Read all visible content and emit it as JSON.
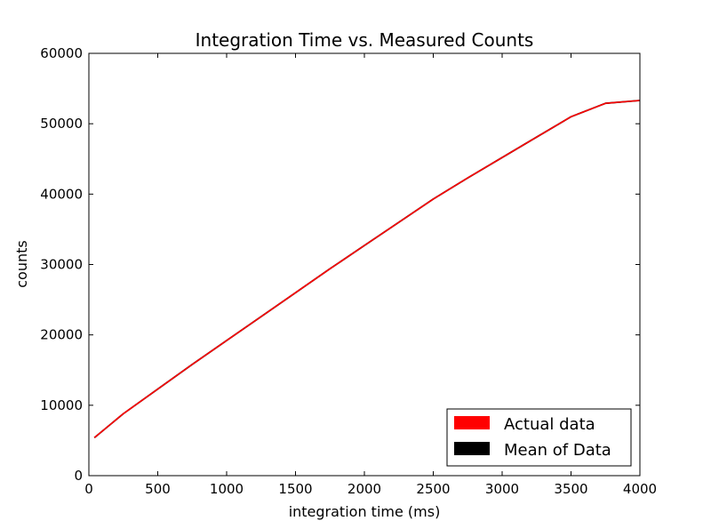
{
  "chart_data": {
    "type": "line",
    "title": "Integration Time vs. Measured Counts",
    "xlabel": "integration time (ms)",
    "ylabel": "counts",
    "xlim": [
      0,
      4000
    ],
    "ylim": [
      0,
      60000
    ],
    "xticks": [
      0,
      500,
      1000,
      1500,
      2000,
      2500,
      3000,
      3500,
      4000
    ],
    "yticks": [
      0,
      10000,
      20000,
      30000,
      40000,
      50000,
      60000
    ],
    "grid": false,
    "legend_position": "bottom-right",
    "series": [
      {
        "name": "Actual data",
        "color": "#ff0000",
        "x": [
          40,
          250,
          500,
          750,
          1000,
          1250,
          1500,
          1750,
          2000,
          2250,
          2500,
          2750,
          3000,
          3250,
          3500,
          3750,
          4000
        ],
        "y": [
          5400,
          8800,
          12300,
          15800,
          19200,
          22600,
          26000,
          29400,
          32700,
          36000,
          39300,
          42300,
          45200,
          48100,
          51000,
          52900,
          53300
        ]
      },
      {
        "name": "Mean of Data",
        "color": "#000000",
        "x": [
          40,
          250,
          500,
          750,
          1000,
          1250,
          1500,
          1750,
          2000,
          2250,
          2500,
          2750,
          3000,
          3250,
          3500,
          3750,
          4000
        ],
        "y": [
          5400,
          8800,
          12300,
          15800,
          19200,
          22600,
          26000,
          29400,
          32700,
          36000,
          39300,
          42300,
          45200,
          48100,
          51000,
          52900,
          53300
        ]
      }
    ]
  }
}
